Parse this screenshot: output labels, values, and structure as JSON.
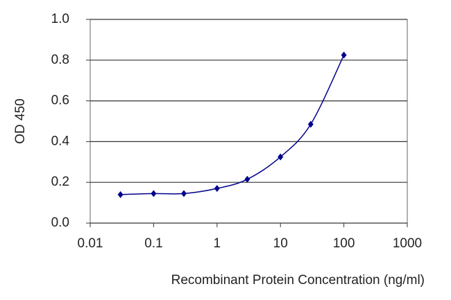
{
  "chart_data": {
    "type": "line",
    "x_label": "Recombinant Protein Concentration (ng/ml)",
    "y_label": "OD 450",
    "x": [
      0.03,
      0.1,
      0.3,
      1,
      3,
      10,
      30,
      100
    ],
    "values": [
      0.14,
      0.145,
      0.145,
      0.17,
      0.215,
      0.325,
      0.485,
      0.825
    ],
    "color": "#00008b",
    "xlog": true,
    "xlim": [
      0.01,
      1000
    ],
    "xticks": [
      0.01,
      0.1,
      1,
      10,
      100,
      1000
    ],
    "ylim": [
      0,
      1
    ],
    "yticks": [
      {
        "value": 0,
        "label": "0.0"
      },
      {
        "value": 0.2,
        "label": "0.2"
      },
      {
        "value": 0.4,
        "label": "0.4"
      },
      {
        "value": 0.6,
        "label": "0.6"
      },
      {
        "value": 0.8,
        "label": "0.8"
      },
      {
        "value": 1,
        "label": "1.0"
      }
    ],
    "grid": true
  }
}
